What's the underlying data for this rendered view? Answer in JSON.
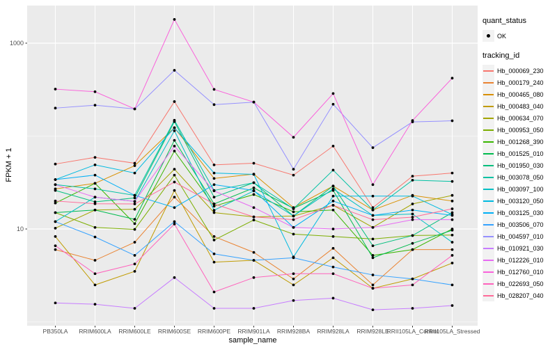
{
  "chart_data": {
    "type": "line",
    "title": "",
    "xlabel": "sample_name",
    "ylabel": "FPKM + 1",
    "y_scale": "log10",
    "y_axis_ticks": [
      "10",
      "1000"
    ],
    "y_tick_values": [
      10,
      1000
    ],
    "y_minor_gridlines": [
      1,
      100
    ],
    "ylim": [
      1,
      2000
    ],
    "grid": "on",
    "legend_position": "right",
    "panel_bg": "#EBEBEB",
    "grid_color": "#FFFFFF",
    "point_color": "#000000",
    "tick_label_color": "#4D4D4D",
    "categories": [
      "PB350LA",
      "RRIM600LA",
      "RRIM600LE",
      "RRIM600SE",
      "RRIM600PE",
      "RRIM901LA",
      "RRIM928BA",
      "RRIM928LA",
      "RRIM928LE",
      "RRII105LA_Control",
      "RRII105LA_Stressed"
    ],
    "series": [
      {
        "name": "Hb_000069_230",
        "color": "#F8766D",
        "values": [
          50,
          59,
          51,
          235,
          49,
          51,
          38,
          78,
          17,
          37,
          40
        ]
      },
      {
        "name": "Hb_000179_240",
        "color": "#EA8331",
        "values": [
          6,
          4.6,
          7.2,
          22,
          8.3,
          5.6,
          2.9,
          6.2,
          2.5,
          6,
          6
        ]
      },
      {
        "name": "Hb_000465_080",
        "color": "#D89000",
        "values": [
          27,
          31,
          48,
          123,
          35,
          39,
          17,
          29,
          16,
          23,
          20
        ]
      },
      {
        "name": "Hb_000483_040",
        "color": "#C09B00",
        "values": [
          8.3,
          2.5,
          3.5,
          26,
          4.4,
          4.6,
          2.5,
          4.9,
          2.3,
          2.9,
          4.3
        ]
      },
      {
        "name": "Hb_000634_070",
        "color": "#A3A500",
        "values": [
          10.2,
          16,
          16.3,
          44,
          15,
          13.5,
          13.8,
          18,
          10.4,
          18.6,
          23
        ]
      },
      {
        "name": "Hb_000953_050",
        "color": "#7CAE00",
        "values": [
          15,
          10.4,
          9.9,
          38,
          7.6,
          12.5,
          8.8,
          8.3,
          7.8,
          8.5,
          8.6
        ]
      },
      {
        "name": "Hb_001268_390",
        "color": "#39B600",
        "values": [
          19,
          31,
          11.4,
          69,
          17.6,
          23.5,
          15.3,
          16,
          5.2,
          6,
          10
        ]
      },
      {
        "name": "Hb_001525_010",
        "color": "#00BB4E",
        "values": [
          15,
          16,
          12.7,
          90,
          18.6,
          27.7,
          16.7,
          26,
          4.9,
          7,
          9.7
        ]
      },
      {
        "name": "Hb_001950_030",
        "color": "#00BF7D",
        "values": [
          26,
          19.6,
          21.6,
          143,
          22,
          31.5,
          13.8,
          29,
          6.6,
          8.5,
          15
        ]
      },
      {
        "name": "Hb_003078_050",
        "color": "#00C1A3",
        "values": [
          30,
          27,
          23,
          148,
          26,
          31.5,
          16.5,
          43,
          16,
          33.5,
          32.5
        ]
      },
      {
        "name": "Hb_003097_100",
        "color": "#00BFC4",
        "values": [
          12,
          22,
          19.8,
          114,
          15.9,
          25.7,
          13.8,
          27,
          14,
          14.5,
          7.2
        ]
      },
      {
        "name": "Hb_003120_050",
        "color": "#00BAE0",
        "values": [
          34,
          49,
          40,
          123,
          40,
          38.7,
          5,
          22.6,
          22.6,
          22.6,
          14.3
        ]
      },
      {
        "name": "Hb_003125_030",
        "color": "#00B0F6",
        "values": [
          34,
          38,
          23,
          17,
          30,
          26,
          10.4,
          20,
          14,
          16,
          14
        ]
      },
      {
        "name": "Hb_003506_070",
        "color": "#35A2FF",
        "values": [
          12,
          8.2,
          5.2,
          12,
          5.4,
          4.6,
          4.9,
          3.9,
          3.2,
          2.9,
          2.5
        ]
      },
      {
        "name": "Hb_004597_010",
        "color": "#9590FF",
        "values": [
          200,
          215,
          196,
          510,
          218,
          232,
          44,
          220,
          75,
          142,
          146
        ]
      },
      {
        "name": "Hb_010921_030",
        "color": "#C77CFF",
        "values": [
          1.6,
          1.55,
          1.4,
          3,
          1.4,
          1.4,
          1.7,
          1.8,
          1.35,
          1.4,
          1.5
        ]
      },
      {
        "name": "Hb_012226_010",
        "color": "#E76BF3",
        "values": [
          30,
          22,
          19.8,
          78,
          25.7,
          17,
          10.4,
          10,
          10.4,
          12.6,
          12.6
        ]
      },
      {
        "name": "Hb_012760_010",
        "color": "#FA62DB",
        "values": [
          320,
          300,
          196,
          1800,
          318,
          232,
          97,
          287,
          30,
          147,
          420
        ]
      },
      {
        "name": "Hb_022693_050",
        "color": "#FF62BC",
        "values": [
          6.6,
          3.3,
          4.2,
          11.3,
          2.1,
          3,
          3.3,
          3.3,
          2.3,
          2.5,
          5.2
        ]
      },
      {
        "name": "Hb_028207_040",
        "color": "#FF6A98",
        "values": [
          20,
          18.7,
          18.6,
          32,
          18.6,
          13.5,
          12.6,
          18,
          12.6,
          13.4,
          16.5
        ]
      }
    ],
    "legend": {
      "quant_status_title": "quant_status",
      "ok_label": "OK",
      "tracking_title": "tracking_id"
    }
  }
}
